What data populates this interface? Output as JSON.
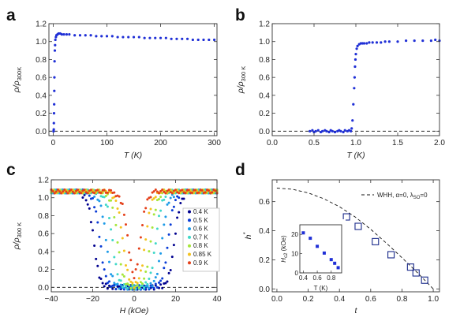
{
  "chart_data": [
    {
      "panel": "a",
      "type": "scatter",
      "xlabel": "T (K)",
      "ylabel": "ρ/ρ300K",
      "xlim": [
        -8,
        305
      ],
      "ylim": [
        -0.05,
        1.2
      ],
      "xticks": [
        "0",
        "100",
        "200",
        "300"
      ],
      "yticks": [
        "0.0",
        "0.2",
        "0.4",
        "0.6",
        "0.8",
        "1.0",
        "1.2"
      ],
      "color": "#1f2fd6",
      "reference_line_y": 0.0,
      "x": [
        0.5,
        0.8,
        1.0,
        1.2,
        1.5,
        1.8,
        2.0,
        2.2,
        2.5,
        3,
        3.5,
        4,
        5,
        6,
        8,
        10,
        13,
        16,
        20,
        25,
        30,
        40,
        50,
        60,
        70,
        80,
        90,
        100,
        110,
        120,
        130,
        140,
        150,
        160,
        170,
        180,
        190,
        200,
        210,
        220,
        230,
        240,
        250,
        260,
        270,
        280,
        290,
        300
      ],
      "y": [
        0.0,
        0.0,
        0.02,
        0.09,
        0.2,
        0.3,
        0.45,
        0.6,
        0.78,
        0.9,
        0.96,
        1.02,
        1.05,
        1.07,
        1.08,
        1.09,
        1.09,
        1.08,
        1.08,
        1.08,
        1.08,
        1.07,
        1.07,
        1.07,
        1.07,
        1.06,
        1.06,
        1.06,
        1.06,
        1.05,
        1.05,
        1.05,
        1.05,
        1.05,
        1.04,
        1.04,
        1.04,
        1.04,
        1.04,
        1.03,
        1.03,
        1.03,
        1.03,
        1.02,
        1.02,
        1.02,
        1.02,
        1.02
      ]
    },
    {
      "panel": "b",
      "type": "scatter",
      "xlabel": "T (K)",
      "ylabel": "ρ/ρ300 K",
      "xlim": [
        0,
        2
      ],
      "ylim": [
        -0.05,
        1.2
      ],
      "xticks": [
        "0.0",
        "0.5",
        "1.0",
        "1.5",
        "2.0"
      ],
      "yticks": [
        "0.0",
        "0.2",
        "0.4",
        "0.6",
        "0.8",
        "1.0",
        "1.2"
      ],
      "color": "#1f2fd6",
      "reference_line_y": 0.0,
      "x": [
        0.45,
        0.48,
        0.5,
        0.52,
        0.55,
        0.58,
        0.6,
        0.63,
        0.65,
        0.68,
        0.7,
        0.72,
        0.75,
        0.78,
        0.8,
        0.82,
        0.85,
        0.87,
        0.9,
        0.92,
        0.94,
        0.95,
        0.96,
        0.97,
        0.98,
        0.985,
        0.99,
        0.995,
        1.0,
        1.01,
        1.02,
        1.04,
        1.06,
        1.08,
        1.1,
        1.13,
        1.16,
        1.2,
        1.25,
        1.3,
        1.35,
        1.4,
        1.5,
        1.6,
        1.7,
        1.8,
        1.9,
        1.95,
        2.0
      ],
      "y": [
        0.0,
        0.01,
        -0.01,
        0.0,
        0.01,
        -0.01,
        0.0,
        0.01,
        0.0,
        -0.01,
        0.01,
        0.0,
        -0.01,
        0.0,
        0.01,
        0.0,
        -0.01,
        0.01,
        0.0,
        0.01,
        0.0,
        0.03,
        0.12,
        0.3,
        0.48,
        0.6,
        0.72,
        0.8,
        0.86,
        0.92,
        0.95,
        0.97,
        0.98,
        0.98,
        0.98,
        0.98,
        0.99,
        0.99,
        0.99,
        0.99,
        1.0,
        1.0,
        1.0,
        1.01,
        1.01,
        1.01,
        1.01,
        1.02,
        1.01
      ]
    },
    {
      "panel": "c",
      "type": "scatter",
      "xlabel": "H (kOe)",
      "ylabel": "ρ/ρ300 K",
      "xlim": [
        -40,
        40
      ],
      "ylim": [
        -0.05,
        1.2
      ],
      "xticks": [
        "−40",
        "−20",
        "0",
        "20",
        "40"
      ],
      "yticks": [
        "0.0",
        "0.2",
        "0.4",
        "0.6",
        "0.8",
        "1.0",
        "1.2"
      ],
      "reference_line_y": 0.0,
      "legend_position": "right",
      "series": [
        {
          "name": "0.4 K",
          "color": "#00008f",
          "hc": 19.5
        },
        {
          "name": "0.5 K",
          "color": "#0a3cd6",
          "hc": 16.5
        },
        {
          "name": "0.6 K",
          "color": "#1d9be8",
          "hc": 13.5
        },
        {
          "name": "0.7 K",
          "color": "#3fd8c8",
          "hc": 10.5
        },
        {
          "name": "0.8 K",
          "color": "#a6e63a",
          "hc": 8.0
        },
        {
          "name": "0.85 K",
          "color": "#f4c21e",
          "hc": 5.5
        },
        {
          "name": "0.9 K",
          "color": "#e4401a",
          "hc": 3.0
        }
      ]
    },
    {
      "panel": "d",
      "type": "scatter",
      "xlabel": "t",
      "ylabel": "h*",
      "xlim": [
        -0.03,
        1.04
      ],
      "ylim": [
        -0.02,
        0.75
      ],
      "xticks": [
        "0.0",
        "0.2",
        "0.4",
        "0.6",
        "0.8",
        "1.0"
      ],
      "yticks": [
        "0.0",
        "0.2",
        "0.4",
        "0.6"
      ],
      "legend": "WHH, α=0, λSO=0",
      "legend_position": "top-right",
      "whh_curve": {
        "t": [
          0.0,
          0.1,
          0.2,
          0.3,
          0.4,
          0.5,
          0.6,
          0.7,
          0.8,
          0.9,
          1.0
        ],
        "h": [
          0.693,
          0.685,
          0.66,
          0.62,
          0.565,
          0.495,
          0.41,
          0.315,
          0.215,
          0.11,
          0.0
        ]
      },
      "t": [
        0.445,
        0.52,
        0.63,
        0.73,
        0.855,
        0.89,
        0.945
      ],
      "h": [
        0.495,
        0.43,
        0.325,
        0.235,
        0.15,
        0.11,
        0.06
      ],
      "inset": {
        "xlabel": "T (K)",
        "ylabel": "Hc2 (kOe)",
        "xlim": [
          0.35,
          0.95
        ],
        "ylim": [
          0,
          25
        ],
        "xticks": [
          "0.4",
          "0.6",
          "0.8"
        ],
        "yticks": [
          "0",
          "10",
          "20"
        ],
        "x": [
          0.4,
          0.5,
          0.6,
          0.7,
          0.8,
          0.85,
          0.9
        ],
        "y": [
          20.8,
          18.0,
          13.8,
          10.3,
          6.9,
          5.0,
          2.7
        ]
      }
    }
  ],
  "panels": {
    "a": {
      "label": "a",
      "xlabel": "T (K)",
      "ylabel_main": "ρ/ρ",
      "ylabel_sub": "300K"
    },
    "b": {
      "label": "b",
      "xlabel": "T (K)",
      "ylabel_main": "ρ/ρ",
      "ylabel_sub": "300 K"
    },
    "c": {
      "label": "c",
      "xlabel": "H (kOe)",
      "ylabel_main": "ρ/ρ",
      "ylabel_sub": "300 K"
    },
    "d": {
      "label": "d",
      "xlabel": "t",
      "ylabel_main": "h",
      "ylabel_sup": "*",
      "legend_label": "WHH, α=0, λ",
      "legend_sub": "SO",
      "legend_tail": "=0",
      "inset_ylabel_main": "H",
      "inset_ylabel_sub": "c2",
      "inset_ylabel_tail": " (kOe)",
      "inset_xlabel": "T (K)"
    }
  }
}
